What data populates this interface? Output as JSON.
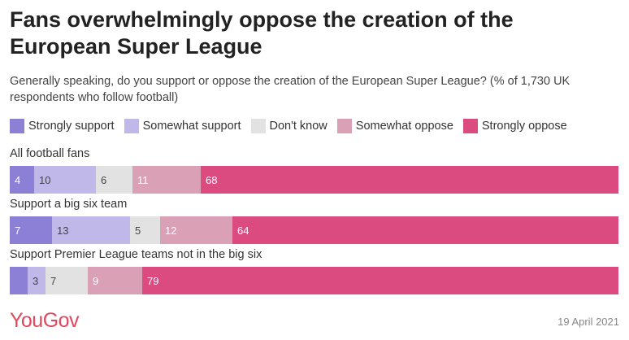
{
  "title": "Fans overwhelmingly oppose the creation of the European Super League",
  "subtitle": "Generally speaking, do you support or oppose the creation of the European Super League? (% of 1,730 UK respondents who follow football)",
  "footer": {
    "logo": "YouGov",
    "date": "19 April 2021"
  },
  "chart_data": {
    "type": "bar",
    "orientation": "horizontal",
    "stacked": true,
    "title": "Fans overwhelmingly oppose the creation of the European Super League",
    "categories": [
      "All football fans",
      "Support a big six team",
      "Support Premier League teams not in the big six"
    ],
    "series": [
      {
        "name": "Strongly support",
        "color": "#8b7fd6",
        "text_color": "#ffffff",
        "values": [
          4,
          7,
          3
        ],
        "labels": [
          "4",
          "7",
          ""
        ]
      },
      {
        "name": "Somewhat support",
        "color": "#c1b8ea",
        "text_color": "#444444",
        "values": [
          10,
          13,
          3
        ],
        "labels": [
          "10",
          "13",
          "3"
        ]
      },
      {
        "name": "Don't know",
        "color": "#e2e2e2",
        "text_color": "#444444",
        "values": [
          6,
          5,
          7
        ],
        "labels": [
          "6",
          "5",
          "7"
        ]
      },
      {
        "name": "Somewhat oppose",
        "color": "#daa0b5",
        "text_color": "#ffffff",
        "values": [
          11,
          12,
          9
        ],
        "labels": [
          "11",
          "12",
          "9"
        ]
      },
      {
        "name": "Strongly oppose",
        "color": "#dc4b80",
        "text_color": "#ffffff",
        "values": [
          68,
          64,
          79
        ],
        "labels": [
          "68",
          "64",
          "79"
        ]
      }
    ],
    "legend_position": "top"
  }
}
